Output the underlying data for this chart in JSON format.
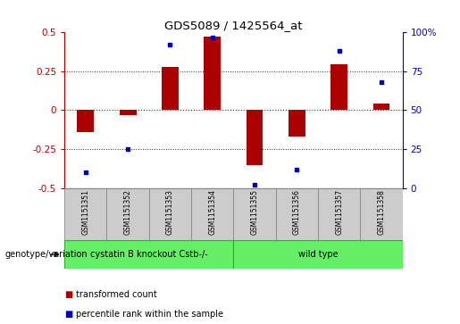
{
  "title": "GDS5089 / 1425564_at",
  "samples": [
    "GSM1151351",
    "GSM1151352",
    "GSM1151353",
    "GSM1151354",
    "GSM1151355",
    "GSM1151356",
    "GSM1151357",
    "GSM1151358"
  ],
  "red_values": [
    -0.14,
    -0.03,
    0.28,
    0.475,
    -0.355,
    -0.17,
    0.295,
    0.04
  ],
  "blue_values": [
    10,
    25,
    92,
    97,
    2,
    12,
    88,
    68
  ],
  "group_boundary": 4,
  "group1_label": "cystatin B knockout Cstb-/-",
  "group2_label": "wild type",
  "group_color": "#66ee66",
  "group_edge_color": "#33aa33",
  "ylim_left": [
    -0.5,
    0.5
  ],
  "ylim_right": [
    0,
    100
  ],
  "yticks_left": [
    -0.5,
    -0.25,
    0,
    0.25,
    0.5
  ],
  "yticks_right": [
    0,
    25,
    50,
    75,
    100
  ],
  "red_color": "#aa0000",
  "blue_color": "#0000bb",
  "zero_line_color": "#cc0000",
  "dotted_line_color": "#222222",
  "bar_width": 0.4,
  "sample_box_color": "#cccccc",
  "sample_box_edge": "#888888",
  "background_color": "#ffffff",
  "legend_red": "transformed count",
  "legend_blue": "percentile rank within the sample",
  "genotype_label": "genotype/variation"
}
